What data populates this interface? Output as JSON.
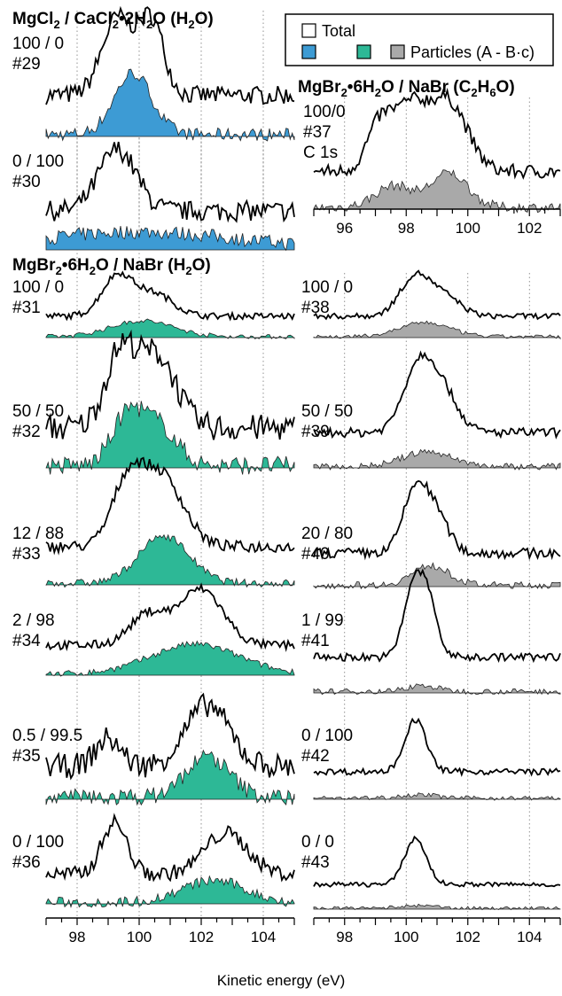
{
  "chart_data": {
    "type": "line",
    "xlabel": "Kinetic energy (eV)",
    "legend": {
      "placement": "top-right",
      "total": "Total",
      "particles": "Particles (A - B·c)",
      "colors": [
        "#3d9bd4",
        "#2db896",
        "#a9a9a9"
      ]
    },
    "groups": [
      {
        "id": "mgcl",
        "title": "MgCl",
        "title_sub1": "2",
        "title_mid": " / CaCl",
        "title_sub2": "2",
        "title_end": "•2H",
        "title_sub3": "2",
        "title_tail": "O (H",
        "title_sub4": "2",
        "title_close": "O)",
        "color": "#3d9bd4",
        "column": "left"
      },
      {
        "id": "mgbr-w",
        "title": "MgBr",
        "title_sub1": "2",
        "title_mid": "•6H",
        "title_sub2": "2",
        "title_end": "O / NaBr (H",
        "title_sub3": "2",
        "title_tail": "O)",
        "title_sub4": "",
        "title_close": "",
        "color": "#2db896",
        "column": "left"
      },
      {
        "id": "mgbr-e",
        "title": "MgBr",
        "title_sub1": "2",
        "title_mid": "•6H",
        "title_sub2": "2",
        "title_end": "O / NaBr (C",
        "title_sub3": "2",
        "title_tail": "H",
        "title_sub4": "6",
        "title_close": "O)",
        "color": "#a9a9a9",
        "column": "right"
      }
    ],
    "axes": [
      {
        "id": "left",
        "xlim": [
          97,
          105
        ],
        "ticks": [
          "98",
          "100",
          "102",
          "104"
        ],
        "tick_values": [
          98,
          100,
          102,
          104
        ]
      },
      {
        "id": "right-top",
        "xlim": [
          95,
          103
        ],
        "ticks": [
          "96",
          "98",
          "100",
          "102"
        ],
        "tick_values": [
          96,
          98,
          100,
          102
        ]
      },
      {
        "id": "right-bottom",
        "xlim": [
          97,
          105
        ],
        "ticks": [
          "98",
          "100",
          "102",
          "104"
        ],
        "tick_values": [
          98,
          100,
          102,
          104
        ]
      }
    ],
    "panels": [
      {
        "ratio": "100 / 0",
        "id": "#29",
        "group": "mgcl",
        "total_peaks": [
          [
            99.3,
            1.0,
            0.5
          ],
          [
            100.4,
            0.95,
            0.4
          ]
        ],
        "particle_peaks": [
          [
            99.8,
            0.9,
            0.6
          ]
        ],
        "noise": 0.12
      },
      {
        "ratio": "0 / 100",
        "id": "#30",
        "group": "mgcl",
        "total_peaks": [
          [
            99.3,
            0.85,
            0.6
          ]
        ],
        "particle_peaks": [
          [
            100.0,
            0.25,
            3.0
          ]
        ],
        "noise": 0.14
      },
      {
        "ratio": "100/0",
        "id": "#37",
        "extra": "C 1s",
        "group": "mgbr-e",
        "total_peaks": [
          [
            97.1,
            0.55,
            0.4
          ],
          [
            98.1,
            0.9,
            0.6
          ],
          [
            99.4,
            0.95,
            0.6
          ]
        ],
        "particle_peaks": [
          [
            97.6,
            0.35,
            0.6
          ],
          [
            99.4,
            0.55,
            0.6
          ]
        ],
        "noise": 0.1
      },
      {
        "ratio": "100 / 0",
        "id": "#31",
        "group": "mgbr-w",
        "total_peaks": [
          [
            99.3,
            1.0,
            0.5
          ],
          [
            100.5,
            0.55,
            0.6
          ]
        ],
        "particle_peaks": [
          [
            100.1,
            0.45,
            1.0
          ]
        ],
        "noise": 0.08
      },
      {
        "ratio": "50 / 50",
        "id": "#32",
        "group": "mgbr-w",
        "total_peaks": [
          [
            99.4,
            1.0,
            0.5
          ],
          [
            100.6,
            0.95,
            0.6
          ]
        ],
        "particle_peaks": [
          [
            99.6,
            0.7,
            0.5
          ],
          [
            100.6,
            0.6,
            0.6
          ]
        ],
        "noise": 0.18
      },
      {
        "ratio": "12 / 88",
        "id": "#33",
        "group": "mgbr-w",
        "total_peaks": [
          [
            99.6,
            0.8,
            0.5
          ],
          [
            100.7,
            1.0,
            0.7
          ]
        ],
        "particle_peaks": [
          [
            100.8,
            0.75,
            0.8
          ]
        ],
        "noise": 0.08
      },
      {
        "ratio": "2 / 98",
        "id": "#34",
        "group": "mgbr-w",
        "total_peaks": [
          [
            100.3,
            0.55,
            0.6
          ],
          [
            102.0,
            1.0,
            0.7
          ]
        ],
        "particle_peaks": [
          [
            101.8,
            0.6,
            1.4
          ]
        ],
        "noise": 0.08
      },
      {
        "ratio": "0.5 / 99.5",
        "id": "#35",
        "group": "mgbr-w",
        "total_peaks": [
          [
            99.0,
            0.45,
            0.4
          ],
          [
            102.2,
            1.0,
            0.7
          ]
        ],
        "particle_peaks": [
          [
            102.2,
            0.75,
            0.7
          ]
        ],
        "noise": 0.2
      },
      {
        "ratio": "0 / 100",
        "id": "#36",
        "group": "mgbr-w",
        "total_peaks": [
          [
            99.2,
            0.95,
            0.4
          ],
          [
            102.8,
            0.75,
            0.7
          ]
        ],
        "particle_peaks": [
          [
            102.4,
            0.45,
            1.0
          ]
        ],
        "noise": 0.14
      },
      {
        "ratio": "100 / 0",
        "id": "#38",
        "group": "mgbr-e",
        "total_peaks": [
          [
            100.3,
            1.0,
            0.5
          ],
          [
            101.3,
            0.45,
            0.5
          ]
        ],
        "particle_peaks": [
          [
            100.6,
            0.4,
            0.8
          ]
        ],
        "noise": 0.07
      },
      {
        "ratio": "50 / 50",
        "id": "#39",
        "group": "mgbr-e",
        "total_peaks": [
          [
            100.4,
            1.0,
            0.5
          ],
          [
            101.2,
            0.55,
            0.5
          ]
        ],
        "particle_peaks": [
          [
            100.7,
            0.25,
            0.8
          ]
        ],
        "noise": 0.07
      },
      {
        "ratio": "20 / 80",
        "id": "#40",
        "group": "mgbr-e",
        "total_peaks": [
          [
            100.3,
            1.0,
            0.4
          ],
          [
            101.0,
            0.55,
            0.4
          ]
        ],
        "particle_peaks": [
          [
            100.8,
            0.35,
            0.6
          ]
        ],
        "noise": 0.08
      },
      {
        "ratio": "1 / 99",
        "id": "#41",
        "group": "mgbr-e",
        "total_peaks": [
          [
            100.2,
            0.95,
            0.3
          ],
          [
            100.7,
            0.85,
            0.3
          ]
        ],
        "particle_peaks": [
          [
            100.5,
            0.1,
            0.5
          ]
        ],
        "noise": 0.06
      },
      {
        "ratio": "0 / 100",
        "id": "#42",
        "group": "mgbr-e",
        "total_peaks": [
          [
            100.3,
            1.0,
            0.35
          ]
        ],
        "particle_peaks": [
          [
            100.4,
            0.08,
            0.6
          ]
        ],
        "noise": 0.06
      },
      {
        "ratio": "0 / 0",
        "id": "#43",
        "group": "mgbr-e",
        "total_peaks": [
          [
            100.3,
            1.0,
            0.35
          ]
        ],
        "particle_peaks": [
          [
            100.4,
            0.06,
            0.6
          ]
        ],
        "noise": 0.05
      }
    ]
  }
}
